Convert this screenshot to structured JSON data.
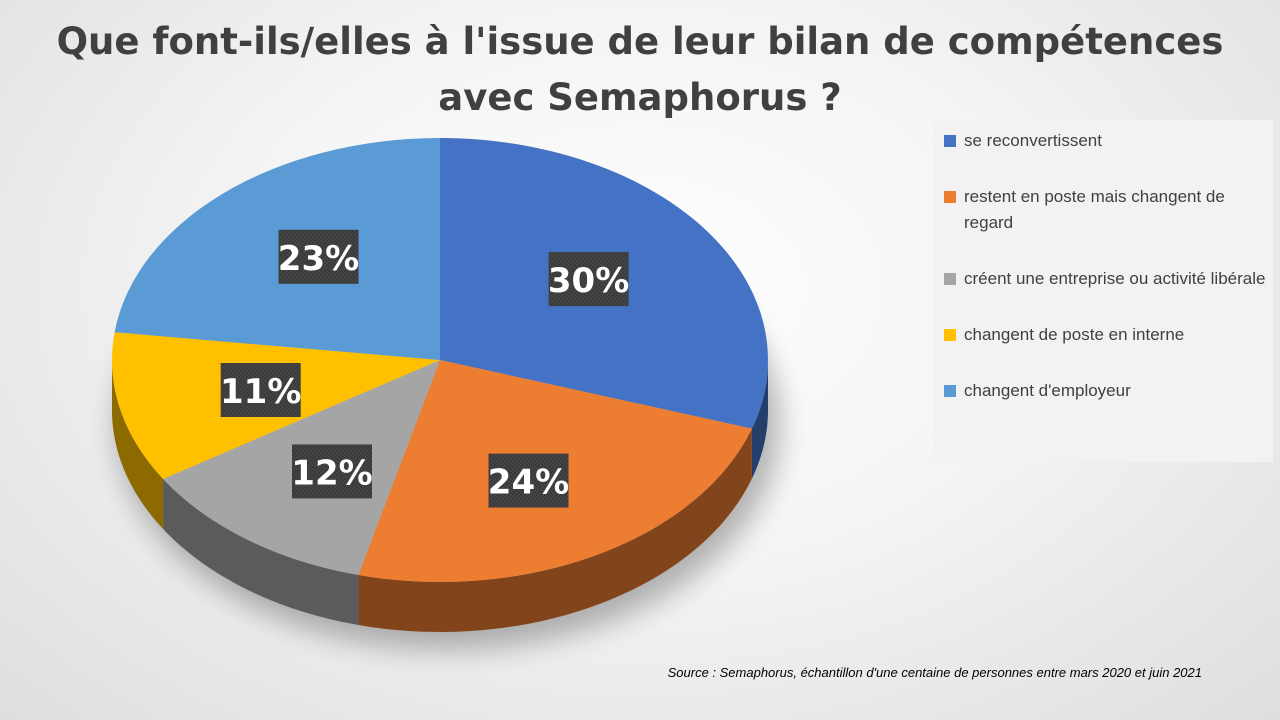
{
  "chart_data": {
    "type": "pie",
    "title_lines": [
      "Que font-ils/elles à l'issue de leur bilan de compétences",
      "avec Semaphorus ?"
    ],
    "slices": [
      {
        "label": "se reconvertissent",
        "value": 30,
        "display": "30%",
        "color": "#4472C4"
      },
      {
        "label": "restent en poste mais changent de regard",
        "value": 24,
        "display": "24%",
        "color": "#ED7D31"
      },
      {
        "label": "créent une entreprise ou activité libérale",
        "value": 12,
        "display": "12%",
        "color": "#A5A5A5"
      },
      {
        "label": "changent de poste en interne",
        "value": 11,
        "display": "11%",
        "color": "#FFC000"
      },
      {
        "label": "changent d'employeur",
        "value": 23,
        "display": "23%",
        "color": "#5B9BD5"
      }
    ],
    "legend_position": "right",
    "style": "3d-pie",
    "source": "Source : Semaphorus,  échantillon d'une centaine de personnes entre mars 2020 et juin 2021"
  }
}
